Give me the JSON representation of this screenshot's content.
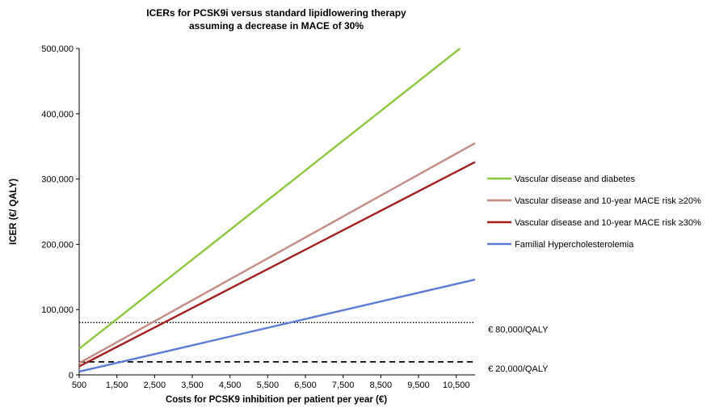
{
  "chart_data": {
    "type": "line",
    "title": "ICERs for PCSK9i versus standard lipidlowering therapy assuming a decrease in MACE of 30%",
    "title_lines": [
      "ICERs for PCSK9i versus standard lipidlowering therapy",
      "assuming a decrease in MACE of 30%"
    ],
    "xlabel": "Costs for PCSK9 inhibition per patient per year (€)",
    "ylabel": "ICER (€/ QALY)",
    "xlim": [
      500,
      11000
    ],
    "ylim": [
      0,
      500000
    ],
    "x_ticks": [
      500,
      1500,
      2500,
      3500,
      4500,
      5500,
      6500,
      7500,
      8500,
      9500,
      10500
    ],
    "x_tick_labels": [
      "500",
      "1,500",
      "2,500",
      "3,500",
      "4,500",
      "5,500",
      "6,500",
      "7,500",
      "8,500",
      "9,500",
      "10,500"
    ],
    "y_ticks": [
      0,
      100000,
      200000,
      300000,
      400000,
      500000
    ],
    "y_tick_labels": [
      "0",
      "100,000",
      "200,000",
      "300,000",
      "400,000",
      "500,000"
    ],
    "grid": false,
    "legend_position": "right",
    "series": [
      {
        "name": "Vascular disease and diabetes",
        "color": "#8cc63f",
        "x": [
          500,
          10600
        ],
        "y": [
          40000,
          500000
        ]
      },
      {
        "name": "Vascular disease and 10-year MACE risk ≥20%",
        "color": "#c48a86",
        "x": [
          500,
          11000
        ],
        "y": [
          18000,
          355000
        ]
      },
      {
        "name": "Vascular disease and 10-year MACE risk ≥30%",
        "color": "#a31f1f",
        "x": [
          500,
          11000
        ],
        "y": [
          13000,
          326000
        ]
      },
      {
        "name": "Familial Hypercholesterolemia",
        "color": "#5b7bd5",
        "x": [
          500,
          11000
        ],
        "y": [
          5000,
          146000
        ]
      }
    ],
    "reference_lines": [
      {
        "label": "€ 80,000/QALY",
        "y": 80000,
        "style": "dotted",
        "color": "#000000"
      },
      {
        "label": "€ 20,000/QALY",
        "y": 20000,
        "style": "dashed",
        "color": "#000000"
      }
    ]
  }
}
